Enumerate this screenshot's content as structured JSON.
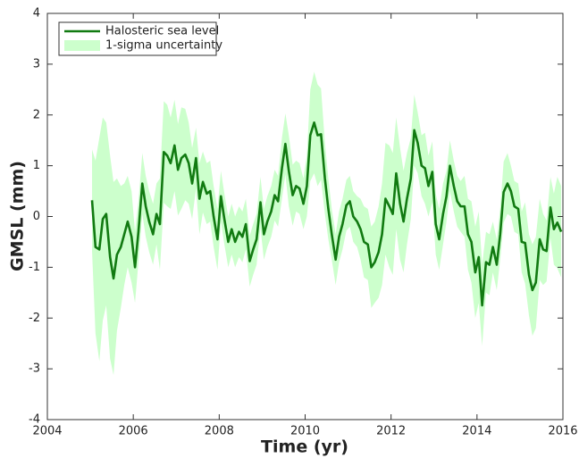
{
  "chart_data": {
    "type": "line",
    "xlabel": "Time (yr)",
    "ylabel": "GMSL (mm)",
    "xlim": [
      2004,
      2016
    ],
    "xticks": [
      2004,
      2006,
      2008,
      2010,
      2012,
      2014,
      2016
    ],
    "ylim": [
      -4,
      4
    ],
    "yticks": [
      -4,
      -3,
      -2,
      -1,
      0,
      1,
      2,
      3,
      4
    ],
    "legend": "upper left",
    "x": [
      2005.04,
      2005.12,
      2005.21,
      2005.29,
      2005.37,
      2005.46,
      2005.54,
      2005.62,
      2005.71,
      2005.79,
      2005.87,
      2005.96,
      2006.04,
      2006.12,
      2006.21,
      2006.29,
      2006.37,
      2006.46,
      2006.54,
      2006.62,
      2006.71,
      2006.79,
      2006.87,
      2006.96,
      2007.04,
      2007.12,
      2007.21,
      2007.29,
      2007.37,
      2007.46,
      2007.54,
      2007.62,
      2007.71,
      2007.79,
      2007.87,
      2007.96,
      2008.04,
      2008.12,
      2008.21,
      2008.29,
      2008.37,
      2008.46,
      2008.54,
      2008.62,
      2008.71,
      2008.79,
      2008.87,
      2008.96,
      2009.04,
      2009.12,
      2009.21,
      2009.29,
      2009.37,
      2009.46,
      2009.54,
      2009.62,
      2009.71,
      2009.79,
      2009.87,
      2009.96,
      2010.04,
      2010.12,
      2010.21,
      2010.29,
      2010.37,
      2010.46,
      2010.54,
      2010.62,
      2010.71,
      2010.79,
      2010.87,
      2010.96,
      2011.04,
      2011.12,
      2011.21,
      2011.29,
      2011.37,
      2011.46,
      2011.54,
      2011.62,
      2011.71,
      2011.79,
      2011.87,
      2011.96,
      2012.04,
      2012.12,
      2012.21,
      2012.29,
      2012.37,
      2012.46,
      2012.54,
      2012.62,
      2012.71,
      2012.79,
      2012.87,
      2012.96,
      2013.04,
      2013.12,
      2013.21,
      2013.29,
      2013.37,
      2013.46,
      2013.54,
      2013.62,
      2013.71,
      2013.79,
      2013.87,
      2013.96,
      2014.04,
      2014.12,
      2014.21,
      2014.29,
      2014.37,
      2014.46,
      2014.54,
      2014.62,
      2014.71,
      2014.79,
      2014.87,
      2014.96,
      2015.04,
      2015.12,
      2015.21,
      2015.29,
      2015.37,
      2015.46,
      2015.54,
      2015.62,
      2015.71,
      2015.79,
      2015.87,
      2015.96
    ],
    "series": [
      {
        "name": "Halosteric sea level",
        "color": "#117a11",
        "values": [
          0.32,
          -0.6,
          -0.65,
          -0.05,
          0.05,
          -0.8,
          -1.22,
          -0.75,
          -0.6,
          -0.35,
          -0.1,
          -0.4,
          -1.0,
          -0.3,
          0.65,
          0.2,
          -0.1,
          -0.35,
          0.05,
          -0.15,
          1.27,
          1.2,
          1.05,
          1.4,
          0.92,
          1.15,
          1.22,
          1.05,
          0.65,
          1.15,
          0.35,
          0.68,
          0.45,
          0.5,
          0.0,
          -0.45,
          0.4,
          -0.05,
          -0.5,
          -0.25,
          -0.5,
          -0.3,
          -0.4,
          -0.15,
          -0.88,
          -0.65,
          -0.45,
          0.28,
          -0.35,
          -0.1,
          0.1,
          0.42,
          0.3,
          0.95,
          1.43,
          0.9,
          0.42,
          0.6,
          0.55,
          0.25,
          0.6,
          1.6,
          1.85,
          1.6,
          1.62,
          0.75,
          0.15,
          -0.35,
          -0.85,
          -0.4,
          -0.15,
          0.22,
          0.3,
          0.0,
          -0.1,
          -0.25,
          -0.5,
          -0.55,
          -1.0,
          -0.9,
          -0.7,
          -0.35,
          0.35,
          0.2,
          0.05,
          0.85,
          0.25,
          -0.1,
          0.35,
          0.75,
          1.7,
          1.45,
          1.0,
          0.95,
          0.6,
          0.88,
          -0.15,
          -0.45,
          0.05,
          0.4,
          1.0,
          0.6,
          0.3,
          0.2,
          0.2,
          -0.35,
          -0.5,
          -1.1,
          -0.8,
          -1.75,
          -0.9,
          -0.95,
          -0.6,
          -0.95,
          -0.35,
          0.48,
          0.65,
          0.5,
          0.2,
          0.15,
          -0.5,
          -0.52,
          -1.15,
          -1.45,
          -1.3,
          -0.45,
          -0.65,
          -0.68,
          0.18,
          -0.25,
          -0.12,
          -0.3
        ]
      },
      {
        "name": "1-sigma uncertainty",
        "color": "#ccffcc",
        "values": [
          1.0,
          1.7,
          2.2,
          2.0,
          1.8,
          2.0,
          1.9,
          1.5,
          1.2,
          1.0,
          0.9,
          0.9,
          0.7,
          0.6,
          0.6,
          0.6,
          0.6,
          0.6,
          0.6,
          0.9,
          1.0,
          1.0,
          0.9,
          0.9,
          0.9,
          1.0,
          0.9,
          0.8,
          0.7,
          0.6,
          0.7,
          0.6,
          0.6,
          0.6,
          0.6,
          0.6,
          0.5,
          0.5,
          0.5,
          0.5,
          0.5,
          0.5,
          0.5,
          0.5,
          0.5,
          0.5,
          0.5,
          0.5,
          0.5,
          0.5,
          0.5,
          0.5,
          0.5,
          0.6,
          0.6,
          0.7,
          0.6,
          0.5,
          0.5,
          0.5,
          0.6,
          0.9,
          1.0,
          1.0,
          0.9,
          0.7,
          0.6,
          0.5,
          0.5,
          0.5,
          0.5,
          0.5,
          0.5,
          0.5,
          0.5,
          0.6,
          0.7,
          0.7,
          0.8,
          0.8,
          0.9,
          1.0,
          1.1,
          1.2,
          1.2,
          1.1,
          1.1,
          1.0,
          0.9,
          0.8,
          0.7,
          0.6,
          0.6,
          0.7,
          0.6,
          0.6,
          0.6,
          0.6,
          0.6,
          0.5,
          0.5,
          0.5,
          0.5,
          0.5,
          0.6,
          0.7,
          0.8,
          0.9,
          0.9,
          0.8,
          0.6,
          0.6,
          0.5,
          0.5,
          0.5,
          0.6,
          0.6,
          0.5,
          0.5,
          0.5,
          0.6,
          0.8,
          0.8,
          0.9,
          0.9,
          0.8,
          0.7,
          0.6,
          0.6,
          0.7,
          0.9,
          0.9
        ]
      }
    ]
  }
}
